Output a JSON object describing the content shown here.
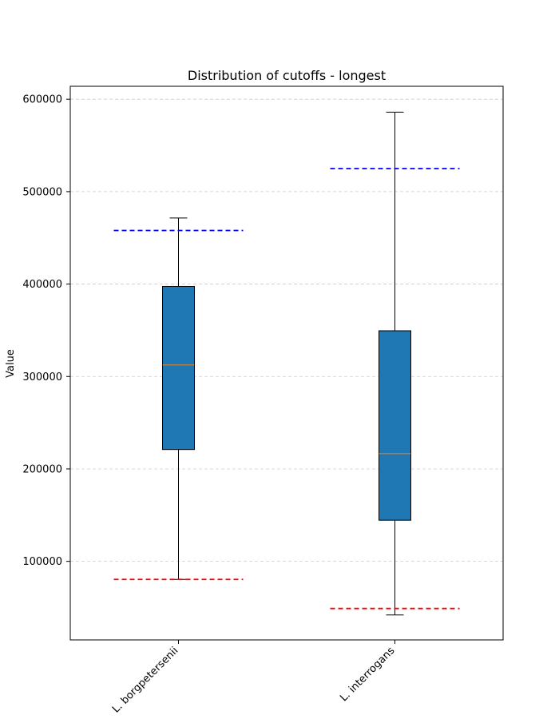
{
  "chart_data": {
    "type": "box",
    "title": "Distribution of cutoffs - longest",
    "xlabel": "",
    "ylabel": "Value",
    "ylim": [
      15000,
      614000
    ],
    "yticks": [
      100000,
      200000,
      300000,
      400000,
      500000,
      600000
    ],
    "ytick_labels": [
      "100000",
      "200000",
      "300000",
      "400000",
      "500000",
      "600000"
    ],
    "grid": "y, dashed",
    "categories": [
      "L. borgpetersenii",
      "L. interrogans"
    ],
    "boxes": [
      {
        "category": "L. borgpetersenii",
        "whisker_low": 80500,
        "q1": 221000,
        "median": 312500,
        "q3": 397500,
        "whisker_high": 471500,
        "lower_cutoff": 80500,
        "upper_cutoff": 458000
      },
      {
        "category": "L. interrogans",
        "whisker_low": 42000,
        "q1": 144500,
        "median": 216500,
        "q3": 349500,
        "whisker_high": 586000,
        "lower_cutoff": 49000,
        "upper_cutoff": 525000
      }
    ],
    "colors": {
      "box_fill": "#1f77b4",
      "median": "#ff7f0e",
      "upper_cutoff": "#0000ff",
      "lower_cutoff": "#ff0000",
      "grid": "#cccccc"
    }
  }
}
